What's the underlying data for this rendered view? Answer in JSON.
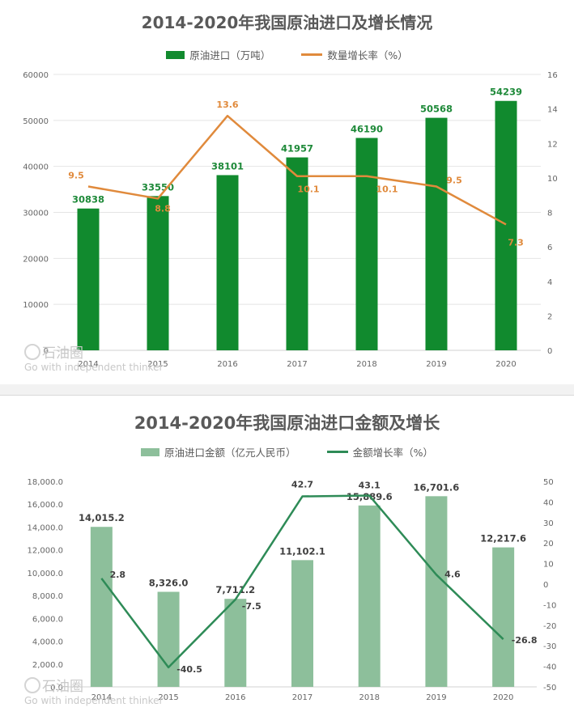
{
  "colors": {
    "bar1": "#118a2e",
    "line1": "#e08a3c",
    "bar2": "#8dbf9b",
    "line2": "#2e8b57",
    "axis_text": "#666666",
    "grid": "#e4e4e4"
  },
  "chart_data": [
    {
      "type": "bar",
      "title": "2014-2020年我国原油进口及增长情况",
      "categories": [
        "2014",
        "2015",
        "2016",
        "2017",
        "2018",
        "2019",
        "2020"
      ],
      "series": [
        {
          "name": "原油进口（万吨）",
          "type": "bar",
          "axis": "left",
          "values": [
            30838,
            33550,
            38101,
            41957,
            46190,
            50568,
            54239
          ],
          "labels": [
            "30838",
            "33550",
            "38101",
            "41957",
            "46190",
            "50568",
            "54239"
          ]
        },
        {
          "name": "数量增长率（%）",
          "type": "line",
          "axis": "right",
          "values": [
            9.5,
            8.8,
            13.6,
            10.1,
            10.1,
            9.5,
            7.3
          ],
          "labels": [
            "9.5",
            "8.8",
            "13.6",
            "10.1",
            "10.1",
            "9.5",
            "7.3"
          ]
        }
      ],
      "y_left": {
        "min": 0,
        "max": 60000,
        "ticks": [
          "0",
          "10000",
          "20000",
          "30000",
          "40000",
          "50000",
          "60000"
        ]
      },
      "y_right": {
        "min": 0,
        "max": 16,
        "ticks": [
          "0",
          "2",
          "4",
          "6",
          "8",
          "10",
          "12",
          "14",
          "16"
        ]
      },
      "grid": true,
      "legend_position": "top"
    },
    {
      "type": "bar",
      "title": "2014-2020年我国原油进口金额及增长",
      "categories": [
        "2014",
        "2015",
        "2016",
        "2017",
        "2018",
        "2019",
        "2020"
      ],
      "series": [
        {
          "name": "原油进口金额（亿元人民币）",
          "type": "bar",
          "axis": "left",
          "values": [
            14015.2,
            8326.0,
            7711.2,
            11102.1,
            15889.6,
            16701.6,
            12217.6
          ],
          "labels": [
            "14,015.2",
            "8,326.0",
            "7,711.2",
            "11,102.1",
            "15,889.6",
            "16,701.6",
            "12,217.6"
          ]
        },
        {
          "name": "金额增长率（%）",
          "type": "line",
          "axis": "right",
          "values": [
            2.8,
            -40.5,
            -7.5,
            42.7,
            43.1,
            4.6,
            -26.8
          ],
          "labels": [
            "2.8",
            "-40.5",
            "-7.5",
            "42.7",
            "43.1",
            "4.6",
            "-26.8"
          ]
        }
      ],
      "y_left": {
        "min": 0,
        "max": 18000,
        "ticks": [
          "0.0",
          "2,000.0",
          "4,000.0",
          "6,000.0",
          "8,000.0",
          "10,000.0",
          "12,000.0",
          "14,000.0",
          "16,000.0",
          "18,000.0"
        ]
      },
      "y_right": {
        "min": -50,
        "max": 50,
        "ticks": [
          "-50",
          "-40",
          "-30",
          "-20",
          "-10",
          "0",
          "10",
          "20",
          "30",
          "40",
          "50"
        ]
      },
      "grid": false,
      "legend_position": "top"
    }
  ],
  "watermark": {
    "name": "石油圈",
    "slogan": "Go with independent thinker"
  }
}
